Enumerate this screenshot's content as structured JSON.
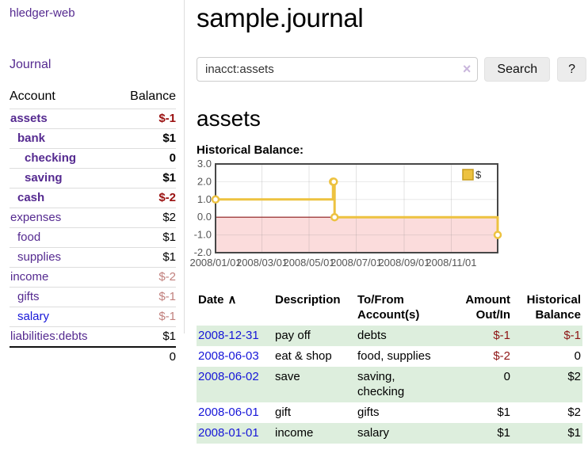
{
  "colors": {
    "accent_purple": "#552a90",
    "link_blue": "#1616d8",
    "negative_strong": "#9a1010",
    "negative_soft": "#c1807d",
    "register_row_green": "#ddeedd",
    "chart_line_gold": "#edc240"
  },
  "sidebar": {
    "brand": "hledger-web",
    "journal_link": "Journal",
    "header": {
      "account": "Account",
      "balance": "Balance"
    },
    "accounts": [
      {
        "name": "assets",
        "balance": "$-1",
        "depth": 1,
        "strong": true,
        "link": "purple",
        "balance_style": "neg"
      },
      {
        "name": "bank",
        "balance": "$1",
        "depth": 2,
        "strong": true,
        "link": "purple",
        "balance_style": "plain"
      },
      {
        "name": "checking",
        "balance": "0",
        "depth": 3,
        "strong": true,
        "link": "purple",
        "balance_style": "plain"
      },
      {
        "name": "saving",
        "balance": "$1",
        "depth": 3,
        "strong": true,
        "link": "purple",
        "balance_style": "plain"
      },
      {
        "name": "cash",
        "balance": "$-2",
        "depth": 2,
        "strong": true,
        "link": "purple",
        "balance_style": "neg"
      },
      {
        "name": "expenses",
        "balance": "$2",
        "depth": 1,
        "strong": false,
        "link": "purple",
        "balance_style": "plain"
      },
      {
        "name": "food",
        "balance": "$1",
        "depth": 2,
        "strong": false,
        "link": "purple",
        "balance_style": "plain"
      },
      {
        "name": "supplies",
        "balance": "$1",
        "depth": 2,
        "strong": false,
        "link": "purple",
        "balance_style": "plain"
      },
      {
        "name": "income",
        "balance": "$-2",
        "depth": 1,
        "strong": false,
        "link": "purple",
        "balance_style": "negsoft"
      },
      {
        "name": "gifts",
        "balance": "$-1",
        "depth": 2,
        "strong": false,
        "link": "purple",
        "balance_style": "negsoft"
      },
      {
        "name": "salary",
        "balance": "$-1",
        "depth": 2,
        "strong": false,
        "link": "blue",
        "balance_style": "negsoft"
      },
      {
        "name": "liabilities:debts",
        "balance": "$1",
        "depth": 1,
        "strong": false,
        "link": "purple",
        "balance_style": "plain"
      }
    ],
    "total": "0"
  },
  "main": {
    "title": "sample.journal",
    "search": {
      "value": "inacct:assets",
      "clear_icon": "×",
      "search_button": "Search",
      "help_button": "?"
    },
    "account_heading": "assets",
    "chart_label": "Historical Balance:",
    "register": {
      "columns": [
        "Date",
        "Description",
        "To/From Account(s)",
        "Amount Out/In",
        "Historical Balance"
      ],
      "sort_icon": "∧",
      "rows": [
        {
          "date": "2008-12-31",
          "description": "pay off",
          "accounts": "debts",
          "amount": "$-1",
          "amount_negative": true,
          "balance": "$-1",
          "balance_negative": true
        },
        {
          "date": "2008-06-03",
          "description": "eat & shop",
          "accounts": "food, supplies",
          "amount": "$-2",
          "amount_negative": true,
          "balance": "0",
          "balance_negative": false
        },
        {
          "date": "2008-06-02",
          "description": "save",
          "accounts": "saving, checking",
          "amount": "0",
          "amount_negative": false,
          "balance": "$2",
          "balance_negative": false
        },
        {
          "date": "2008-06-01",
          "description": "gift",
          "accounts": "gifts",
          "amount": "$1",
          "amount_negative": false,
          "balance": "$2",
          "balance_negative": false
        },
        {
          "date": "2008-01-01",
          "description": "income",
          "accounts": "salary",
          "amount": "$1",
          "amount_negative": false,
          "balance": "$1",
          "balance_negative": false
        }
      ]
    }
  },
  "chart_data": {
    "type": "line",
    "style": "step",
    "title": "Historical Balance:",
    "legend": {
      "label": "$",
      "position": "top-right"
    },
    "series": [
      {
        "name": "$",
        "color": "#edc240",
        "points": [
          [
            "2008-01-01",
            1
          ],
          [
            "2008-06-01",
            2
          ],
          [
            "2008-06-02",
            2
          ],
          [
            "2008-06-03",
            0
          ],
          [
            "2008-12-31",
            -1
          ]
        ]
      }
    ],
    "x_range": [
      "2008-01-01",
      "2008-12-31"
    ],
    "x_ticks": [
      "2008/01/01",
      "2008/03/01",
      "2008/05/01",
      "2008/07/01",
      "2008/09/01",
      "2008/11/01"
    ],
    "y_ticks": [
      3.0,
      2.0,
      1.0,
      0.0,
      -1.0,
      -2.0
    ],
    "ylim": [
      -2,
      3
    ],
    "grid": true,
    "negative_region_color": "#fbdcdc",
    "zero_line_color": "#8b1a1a",
    "border_color": "#474747"
  }
}
